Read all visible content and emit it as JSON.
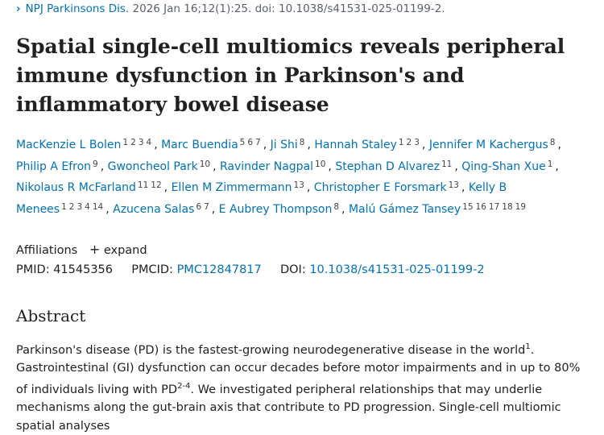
{
  "citation": {
    "journal": "NPJ Parkinsons Dis.",
    "details": "2026 Jan 16;12(1):25. doi: 10.1038/s41531-025-01199-2."
  },
  "title": "Spatial single-cell multiomics reveals peripheral immune dysfunction in Parkinson's and inflammatory bowel disease",
  "authors": [
    {
      "name": "MacKenzie L Bolen",
      "affs": [
        "1",
        "2",
        "3",
        "4"
      ]
    },
    {
      "name": "Marc Buendia",
      "affs": [
        "5",
        "6",
        "7"
      ]
    },
    {
      "name": "Ji Shi",
      "affs": [
        "8"
      ]
    },
    {
      "name": "Hannah Staley",
      "affs": [
        "1",
        "2",
        "3"
      ]
    },
    {
      "name": "Jennifer M Kachergus",
      "affs": [
        "8"
      ]
    },
    {
      "name": "Philip A Efron",
      "affs": [
        "9"
      ]
    },
    {
      "name": "Gwoncheol Park",
      "affs": [
        "10"
      ]
    },
    {
      "name": "Ravinder Nagpal",
      "affs": [
        "10"
      ]
    },
    {
      "name": "Stephan D Alvarez",
      "affs": [
        "11"
      ]
    },
    {
      "name": "Qing-Shan Xue",
      "affs": [
        "1"
      ]
    },
    {
      "name": "Nikolaus R McFarland",
      "affs": [
        "11",
        "12"
      ]
    },
    {
      "name": "Ellen M Zimmermann",
      "affs": [
        "13"
      ]
    },
    {
      "name": "Christopher E Forsmark",
      "affs": [
        "13"
      ]
    },
    {
      "name": "Kelly B Menees",
      "affs": [
        "1",
        "2",
        "3",
        "4",
        "14"
      ]
    },
    {
      "name": "Azucena Salas",
      "affs": [
        "6",
        "7"
      ]
    },
    {
      "name": "E Aubrey Thompson",
      "affs": [
        "8"
      ]
    },
    {
      "name": "Malú Gámez Tansey",
      "affs": [
        "15",
        "16",
        "17",
        "18",
        "19"
      ]
    }
  ],
  "affiliations": {
    "label": "Affiliations",
    "toggle": "expand"
  },
  "ids": {
    "pmid_label": "PMID:",
    "pmid": "41545356",
    "pmcid_label": "PMCID:",
    "pmcid": "PMC12847817",
    "doi_label": "DOI:",
    "doi": "10.1038/s41531-025-01199-2"
  },
  "abstract": {
    "heading": "Abstract",
    "s1": "Parkinson's disease (PD) is the fastest-growing neurodegenerative disease in the world",
    "ref1": "1",
    "s2": ". Gastrointestinal (GI) dysfunction can occur decades before motor impairments and in up to 80% of individuals living with PD",
    "ref2": "2-4",
    "s3": ". We investigated peripheral relationships that may underlie mechanisms along the gut-brain axis that contribute to PD progression. Single-cell multiomic spatial analyses"
  }
}
